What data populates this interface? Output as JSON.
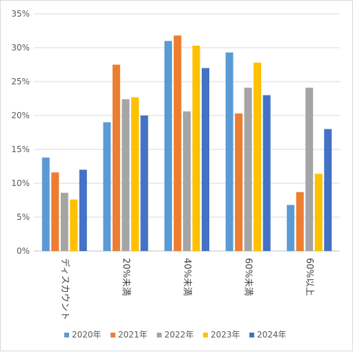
{
  "chart_data": {
    "type": "bar",
    "categories": [
      "ディスカウント",
      "20%未満",
      "40%未満",
      "60%未満",
      "60%以上"
    ],
    "series": [
      {
        "name": "2020年",
        "color": "#5B9BD5",
        "values": [
          13.8,
          19.0,
          31.0,
          29.3,
          6.8
        ]
      },
      {
        "name": "2021年",
        "color": "#ED7D31",
        "values": [
          11.6,
          27.5,
          31.8,
          20.3,
          8.7
        ]
      },
      {
        "name": "2022年",
        "color": "#A5A5A5",
        "values": [
          8.6,
          22.4,
          20.6,
          24.1,
          24.1
        ]
      },
      {
        "name": "2023年",
        "color": "#FFC000",
        "values": [
          7.6,
          22.7,
          30.3,
          27.8,
          11.4
        ]
      },
      {
        "name": "2024年",
        "color": "#4472C4",
        "values": [
          12.0,
          20.0,
          27.0,
          23.0,
          18.0
        ]
      }
    ],
    "ylim": [
      0,
      35
    ],
    "yticks": [
      "0%",
      "5%",
      "10%",
      "15%",
      "20%",
      "25%",
      "30%",
      "35%"
    ],
    "grid": true,
    "legend": "bottom"
  }
}
